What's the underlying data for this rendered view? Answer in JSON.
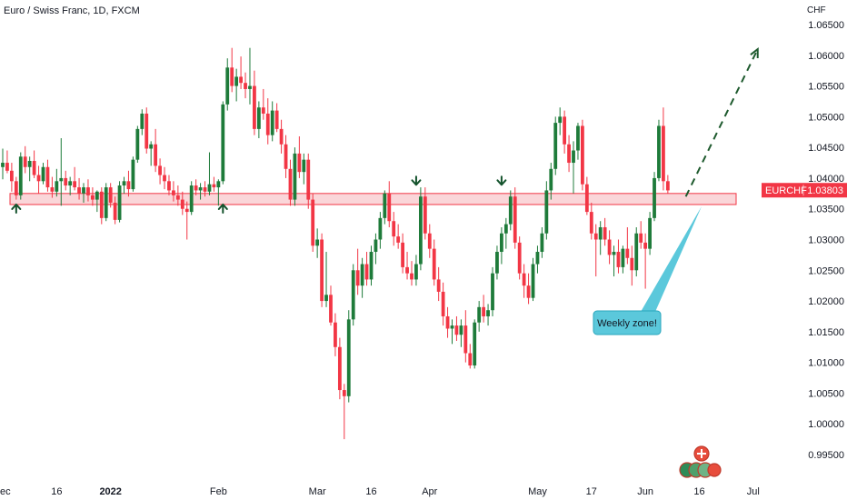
{
  "header": {
    "title": "Euro / Swiss Franc, 1D, FXCM",
    "currency": "CHF"
  },
  "price_tag": {
    "symbol": "EURCHF",
    "price": "1.03803",
    "color": "#f23645"
  },
  "annotation": {
    "callout": "Weekly zone!",
    "callout_color": "#5bc8db"
  },
  "colors": {
    "up": "#1e7b3a",
    "down": "#f23645",
    "zone_fill": "#f8c8cc",
    "zone_border": "#f23645",
    "arrow": "#14532d"
  },
  "chart_data": {
    "type": "candlestick",
    "title": "Euro / Swiss Franc, 1D, FXCM",
    "ylabel": "CHF",
    "ylim": [
      0.9915,
      1.0675
    ],
    "yticks": [
      "1.06500",
      "1.06000",
      "1.05500",
      "1.05000",
      "1.04500",
      "1.04000",
      "1.03500",
      "1.03000",
      "1.02500",
      "1.02000",
      "1.01500",
      "1.01000",
      "1.00500",
      "1.00000",
      "0.99500"
    ],
    "xticks": [
      {
        "label": "ec",
        "i": 0
      },
      {
        "label": "16",
        "i": 12
      },
      {
        "label": "2022",
        "i": 24,
        "bold": true
      },
      {
        "label": "Feb",
        "i": 48
      },
      {
        "label": "Mar",
        "i": 70
      },
      {
        "label": "16",
        "i": 82
      },
      {
        "label": "Apr",
        "i": 95
      },
      {
        "label": "May",
        "i": 119
      },
      {
        "label": "17",
        "i": 131
      },
      {
        "label": "Jun",
        "i": 143
      },
      {
        "label": "16",
        "i": 155
      },
      {
        "label": "Jul",
        "i": 167
      }
    ],
    "support_zone": {
      "low": 1.0357,
      "high": 1.0375
    },
    "last_price": 1.03803,
    "projection": {
      "from": {
        "i": 152,
        "price": 1.037
      },
      "to": {
        "i": 168,
        "price": 1.061
      }
    },
    "markers": [
      {
        "type": "up",
        "i": 3,
        "price": 1.036
      },
      {
        "type": "up",
        "i": 49,
        "price": 1.036
      },
      {
        "type": "down",
        "i": 92,
        "price": 1.0395
      },
      {
        "type": "down",
        "i": 111,
        "price": 1.0395
      }
    ],
    "candles": [
      [
        1.0418,
        1.0448,
        1.0398,
        1.0425
      ],
      [
        1.0425,
        1.0445,
        1.0408,
        1.0412
      ],
      [
        1.0412,
        1.0425,
        1.0378,
        1.0395
      ],
      [
        1.0395,
        1.0402,
        1.0365,
        1.0372
      ],
      [
        1.0372,
        1.0442,
        1.0365,
        1.0435
      ],
      [
        1.0435,
        1.0452,
        1.0408,
        1.0418
      ],
      [
        1.0418,
        1.0435,
        1.0395,
        1.0428
      ],
      [
        1.0428,
        1.0445,
        1.04,
        1.0405
      ],
      [
        1.0405,
        1.042,
        1.0375,
        1.0395
      ],
      [
        1.0395,
        1.0425,
        1.039,
        1.0418
      ],
      [
        1.0418,
        1.043,
        1.0378,
        1.0385
      ],
      [
        1.0385,
        1.0402,
        1.0368,
        1.0378
      ],
      [
        1.0378,
        1.0415,
        1.037,
        1.0395
      ],
      [
        1.0395,
        1.0465,
        1.0355,
        1.04
      ],
      [
        1.04,
        1.0412,
        1.038,
        1.0388
      ],
      [
        1.0388,
        1.0402,
        1.0372,
        1.0395
      ],
      [
        1.0395,
        1.0418,
        1.038,
        1.0385
      ],
      [
        1.0385,
        1.04,
        1.0365,
        1.0375
      ],
      [
        1.0375,
        1.0392,
        1.036,
        1.0385
      ],
      [
        1.0385,
        1.0398,
        1.0362,
        1.0372
      ],
      [
        1.0372,
        1.0385,
        1.0355,
        1.0365
      ],
      [
        1.0365,
        1.038,
        1.0345,
        1.0378
      ],
      [
        1.0378,
        1.0385,
        1.0325,
        1.0335
      ],
      [
        1.0335,
        1.0392,
        1.033,
        1.0385
      ],
      [
        1.0385,
        1.0392,
        1.0352,
        1.036
      ],
      [
        1.036,
        1.037,
        1.0325,
        1.0332
      ],
      [
        1.0332,
        1.0395,
        1.0328,
        1.0388
      ],
      [
        1.0388,
        1.0402,
        1.0375,
        1.0395
      ],
      [
        1.0395,
        1.0412,
        1.037,
        1.0382
      ],
      [
        1.0382,
        1.0435,
        1.0378,
        1.043
      ],
      [
        1.043,
        1.0485,
        1.0425,
        1.048
      ],
      [
        1.048,
        1.0512,
        1.047,
        1.0505
      ],
      [
        1.0505,
        1.0515,
        1.044,
        1.0448
      ],
      [
        1.0448,
        1.046,
        1.042,
        1.0455
      ],
      [
        1.0455,
        1.048,
        1.041,
        1.042
      ],
      [
        1.042,
        1.0432,
        1.039,
        1.0405
      ],
      [
        1.0405,
        1.0418,
        1.0382,
        1.0395
      ],
      [
        1.0395,
        1.0405,
        1.0372,
        1.038
      ],
      [
        1.038,
        1.0395,
        1.0362,
        1.0372
      ],
      [
        1.0372,
        1.0388,
        1.0355,
        1.0365
      ],
      [
        1.0365,
        1.0378,
        1.034,
        1.035
      ],
      [
        1.035,
        1.0362,
        1.03,
        1.0345
      ],
      [
        1.0345,
        1.0395,
        1.034,
        1.0388
      ],
      [
        1.0388,
        1.0398,
        1.0372,
        1.038
      ],
      [
        1.038,
        1.0392,
        1.0365,
        1.0385
      ],
      [
        1.0385,
        1.0395,
        1.037,
        1.0378
      ],
      [
        1.0378,
        1.0442,
        1.0372,
        1.039
      ],
      [
        1.039,
        1.0402,
        1.0378,
        1.0385
      ],
      [
        1.0385,
        1.0398,
        1.0355,
        1.0395
      ],
      [
        1.0395,
        1.0525,
        1.039,
        1.052
      ],
      [
        1.052,
        1.0595,
        1.051,
        1.058
      ],
      [
        1.058,
        1.0612,
        1.054,
        1.055
      ],
      [
        1.055,
        1.0578,
        1.0525,
        1.0565
      ],
      [
        1.0565,
        1.0598,
        1.0545,
        1.0555
      ],
      [
        1.0555,
        1.0572,
        1.053,
        1.0545
      ],
      [
        1.0545,
        1.0612,
        1.052,
        1.055
      ],
      [
        1.055,
        1.0575,
        1.047,
        1.048
      ],
      [
        1.048,
        1.0525,
        1.0465,
        1.0515
      ],
      [
        1.0515,
        1.0545,
        1.0495,
        1.0505
      ],
      [
        1.0505,
        1.053,
        1.0455,
        1.047
      ],
      [
        1.047,
        1.0525,
        1.046,
        1.051
      ],
      [
        1.051,
        1.0522,
        1.0475,
        1.048
      ],
      [
        1.048,
        1.0495,
        1.044,
        1.0455
      ],
      [
        1.0455,
        1.047,
        1.04,
        1.0415
      ],
      [
        1.0415,
        1.043,
        1.0355,
        1.0365
      ],
      [
        1.0365,
        1.045,
        1.0355,
        1.044
      ],
      [
        1.044,
        1.0468,
        1.04,
        1.041
      ],
      [
        1.041,
        1.044,
        1.039,
        1.043
      ],
      [
        1.043,
        1.044,
        1.035,
        1.0365
      ],
      [
        1.0365,
        1.0375,
        1.028,
        1.029
      ],
      [
        1.029,
        1.0318,
        1.027,
        1.03
      ],
      [
        1.03,
        1.031,
        1.019,
        1.02
      ],
      [
        1.02,
        1.028,
        1.019,
        1.021
      ],
      [
        1.021,
        1.0225,
        1.016,
        1.0165
      ],
      [
        1.0165,
        1.018,
        1.011,
        1.0125
      ],
      [
        1.0125,
        1.014,
        1.004,
        1.0055
      ],
      [
        1.0055,
        1.0065,
        0.9975,
        1.0045
      ],
      [
        1.0045,
        1.0185,
        1.0035,
        1.017
      ],
      [
        1.017,
        1.026,
        1.016,
        1.025
      ],
      [
        1.025,
        1.0285,
        1.021,
        1.0225
      ],
      [
        1.0225,
        1.027,
        1.0205,
        1.026
      ],
      [
        1.026,
        1.028,
        1.0225,
        1.0235
      ],
      [
        1.0235,
        1.029,
        1.0225,
        1.028
      ],
      [
        1.028,
        1.031,
        1.026,
        1.03
      ],
      [
        1.03,
        1.0345,
        1.0285,
        1.0335
      ],
      [
        1.0335,
        1.038,
        1.0325,
        1.0375
      ],
      [
        1.0375,
        1.0395,
        1.032,
        1.033
      ],
      [
        1.033,
        1.0345,
        1.029,
        1.0305
      ],
      [
        1.0305,
        1.0325,
        1.0285,
        1.0295
      ],
      [
        1.0295,
        1.031,
        1.0245,
        1.0255
      ],
      [
        1.0255,
        1.028,
        1.0235,
        1.0245
      ],
      [
        1.0245,
        1.0265,
        1.0225,
        1.0235
      ],
      [
        1.0235,
        1.0275,
        1.0225,
        1.026
      ],
      [
        1.026,
        1.0385,
        1.025,
        1.037
      ],
      [
        1.037,
        1.0385,
        1.03,
        1.031
      ],
      [
        1.031,
        1.0325,
        1.027,
        1.0285
      ],
      [
        1.0285,
        1.03,
        1.0225,
        1.0235
      ],
      [
        1.0235,
        1.0255,
        1.02,
        1.0215
      ],
      [
        1.0215,
        1.023,
        1.016,
        1.0175
      ],
      [
        1.0175,
        1.019,
        1.014,
        1.0155
      ],
      [
        1.0155,
        1.017,
        1.013,
        1.016
      ],
      [
        1.016,
        1.0175,
        1.0135,
        1.0145
      ],
      [
        1.0145,
        1.017,
        1.0125,
        1.016
      ],
      [
        1.016,
        1.0185,
        1.01,
        1.0115
      ],
      [
        1.0115,
        1.013,
        1.009,
        1.0095
      ],
      [
        1.0095,
        1.017,
        1.009,
        1.0165
      ],
      [
        1.0165,
        1.02,
        1.015,
        1.019
      ],
      [
        1.019,
        1.021,
        1.0165,
        1.0175
      ],
      [
        1.0175,
        1.0195,
        1.016,
        1.0185
      ],
      [
        1.0185,
        1.0255,
        1.0175,
        1.0245
      ],
      [
        1.0245,
        1.029,
        1.0235,
        1.028
      ],
      [
        1.028,
        1.032,
        1.026,
        1.031
      ],
      [
        1.031,
        1.0335,
        1.0285,
        1.0325
      ],
      [
        1.0325,
        1.038,
        1.0315,
        1.037
      ],
      [
        1.037,
        1.0385,
        1.0285,
        1.0295
      ],
      [
        1.0295,
        1.0305,
        1.0235,
        1.0245
      ],
      [
        1.0245,
        1.026,
        1.0205,
        1.0225
      ],
      [
        1.0225,
        1.0245,
        1.0195,
        1.0205
      ],
      [
        1.0205,
        1.027,
        1.02,
        1.026
      ],
      [
        1.026,
        1.029,
        1.0245,
        1.028
      ],
      [
        1.028,
        1.032,
        1.027,
        1.031
      ],
      [
        1.031,
        1.0395,
        1.03,
        1.038
      ],
      [
        1.038,
        1.0425,
        1.0365,
        1.0415
      ],
      [
        1.0415,
        1.05,
        1.0405,
        1.049
      ],
      [
        1.049,
        1.0515,
        1.047,
        1.05
      ],
      [
        1.05,
        1.051,
        1.044,
        1.0455
      ],
      [
        1.0455,
        1.047,
        1.041,
        1.0425
      ],
      [
        1.0425,
        1.046,
        1.0375,
        1.0445
      ],
      [
        1.0445,
        1.049,
        1.043,
        1.0485
      ],
      [
        1.0485,
        1.0495,
        1.038,
        1.039
      ],
      [
        1.039,
        1.0402,
        1.034,
        1.0345
      ],
      [
        1.0345,
        1.036,
        1.03,
        1.031
      ],
      [
        1.031,
        1.0325,
        1.024,
        1.03
      ],
      [
        1.03,
        1.033,
        1.0275,
        1.032
      ],
      [
        1.032,
        1.0335,
        1.029,
        1.03
      ],
      [
        1.03,
        1.0315,
        1.026,
        1.0275
      ],
      [
        1.0275,
        1.029,
        1.024,
        1.028
      ],
      [
        1.028,
        1.03,
        1.0245,
        1.0255
      ],
      [
        1.0255,
        1.029,
        1.0245,
        1.0285
      ],
      [
        1.0285,
        1.032,
        1.026,
        1.027
      ],
      [
        1.027,
        1.029,
        1.0225,
        1.025
      ],
      [
        1.025,
        1.032,
        1.024,
        1.031
      ],
      [
        1.031,
        1.033,
        1.0285,
        1.0295
      ],
      [
        1.0295,
        1.031,
        1.022,
        1.0285
      ],
      [
        1.0285,
        1.0345,
        1.0275,
        1.0335
      ],
      [
        1.0335,
        1.041,
        1.033,
        1.04
      ],
      [
        1.04,
        1.0495,
        1.0395,
        1.0485
      ],
      [
        1.0485,
        1.0515,
        1.038,
        1.0395
      ],
      [
        1.0395,
        1.0405,
        1.0375,
        1.038
      ]
    ]
  }
}
